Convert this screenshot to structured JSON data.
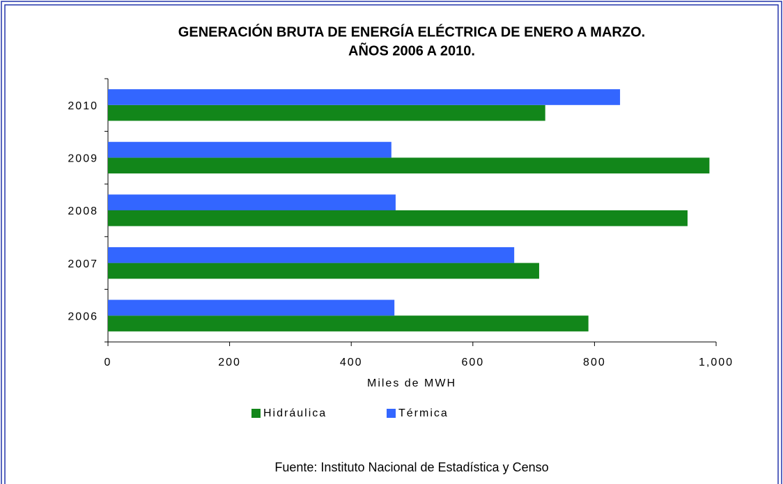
{
  "chart_data": {
    "type": "bar",
    "orientation": "horizontal",
    "title": "GENERACIÓN BRUTA DE ENERGÍA ELÉCTRICA DE ENERO A MARZO.",
    "subtitle": "AÑOS 2006 A 2010.",
    "categories": [
      "2006",
      "2007",
      "2008",
      "2009",
      "2010"
    ],
    "series": [
      {
        "name": "Hidráulica",
        "color": "#12861a",
        "values": [
          790,
          709,
          953,
          989,
          719
        ]
      },
      {
        "name": "Térmica",
        "color": "#3366ff",
        "values": [
          471,
          668,
          473,
          466,
          842
        ]
      }
    ],
    "xlim": [
      0,
      1000
    ],
    "xticks": [
      0,
      200,
      400,
      600,
      800,
      {
        "value": 1000,
        "label": "1,000"
      }
    ],
    "xlabel": "Miles de MWH",
    "source": "Fuente: Instituto Nacional de Estadística y Censo"
  }
}
